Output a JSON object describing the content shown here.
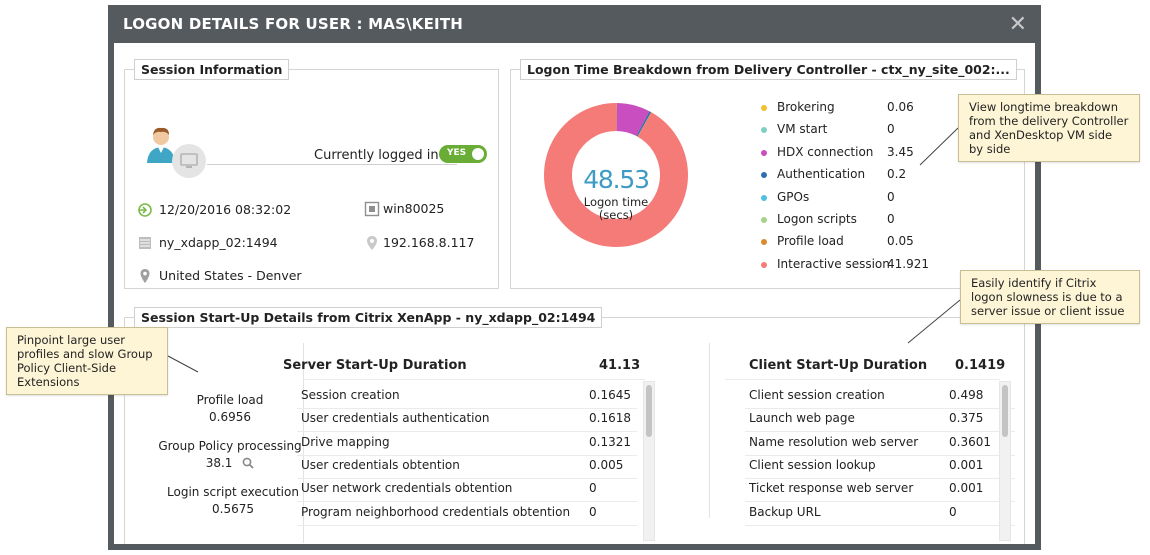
{
  "dialog": {
    "title": "LOGON DETAILS FOR USER : MAS\\KEITH",
    "close_glyph": "✕"
  },
  "session_info": {
    "heading": "Session Information",
    "logged_in_label": "Currently logged in",
    "logged_in_toggle": "YES",
    "logon_time": "12/20/2016 08:32:02",
    "machine": "win80025",
    "server": "ny_xdapp_02:1494",
    "ip": "192.168.8.117",
    "location": "United States - Denver"
  },
  "logon_breakdown": {
    "heading": "Logon Time Breakdown from Delivery Controller - ctx_ny_site_002:...",
    "total": "48.53",
    "center_label_1": "Logon time",
    "center_label_2": "(secs)",
    "legend": [
      {
        "name": "Brokering",
        "value": "0.06",
        "color": "#f2c12e"
      },
      {
        "name": "VM start",
        "value": "0",
        "color": "#7fcfc4"
      },
      {
        "name": "HDX connection",
        "value": "3.45",
        "color": "#c94fc1"
      },
      {
        "name": "Authentication",
        "value": "0.2",
        "color": "#2f6fb0"
      },
      {
        "name": "GPOs",
        "value": "0",
        "color": "#4ec1e0"
      },
      {
        "name": "Logon scripts",
        "value": "0",
        "color": "#a8d28c"
      },
      {
        "name": "Profile load",
        "value": "0.05",
        "color": "#d98a2a"
      },
      {
        "name": "Interactive session",
        "value": "41.921",
        "color": "#f47b78"
      }
    ]
  },
  "chart_data": {
    "type": "pie",
    "categories": [
      "Brokering",
      "VM start",
      "HDX connection",
      "Authentication",
      "GPOs",
      "Logon scripts",
      "Profile load",
      "Interactive session"
    ],
    "values": [
      0.06,
      0,
      3.45,
      0.2,
      0,
      0,
      0.05,
      41.921
    ],
    "colors": [
      "#f2c12e",
      "#7fcfc4",
      "#c94fc1",
      "#2f6fb0",
      "#4ec1e0",
      "#a8d28c",
      "#d98a2a",
      "#f47b78"
    ]
  },
  "callouts": {
    "top_right": "View longtime breakdown from the delivery Controller and XenDesktop VM side by side",
    "mid_right": "Easily identify if Citrix logon slowness is due to a server issue or client issue",
    "left": "Pinpoint large user profiles and slow Group Policy Client-Side Extensions"
  },
  "startup": {
    "heading": "Session Start-Up Details from Citrix XenApp - ny_xdapp_02:1494",
    "left_metrics": [
      {
        "label": "Profile load",
        "value": "0.6956"
      },
      {
        "label": "Group Policy processing",
        "value": "38.1"
      },
      {
        "label": "Login script execution",
        "value": "0.5675"
      }
    ],
    "server": {
      "title": "Server Start-Up Duration",
      "total": "41.13",
      "rows": [
        {
          "name": "Session creation",
          "value": "0.1645"
        },
        {
          "name": "User credentials authentication",
          "value": "0.1618"
        },
        {
          "name": "Drive mapping",
          "value": "0.1321"
        },
        {
          "name": "User credentials obtention",
          "value": "0.005"
        },
        {
          "name": "User network credentials obtention",
          "value": "0"
        },
        {
          "name": "Program neighborhood credentials obtention",
          "value": "0"
        }
      ]
    },
    "client": {
      "title": "Client Start-Up Duration",
      "total": "0.1419",
      "rows": [
        {
          "name": "Client session creation",
          "value": "0.498"
        },
        {
          "name": "Launch web page",
          "value": "0.375"
        },
        {
          "name": "Name resolution web server",
          "value": "0.3601"
        },
        {
          "name": "Client session lookup",
          "value": "0.001"
        },
        {
          "name": "Ticket response web server",
          "value": "0.001"
        },
        {
          "name": "Backup URL",
          "value": "0"
        }
      ]
    }
  }
}
